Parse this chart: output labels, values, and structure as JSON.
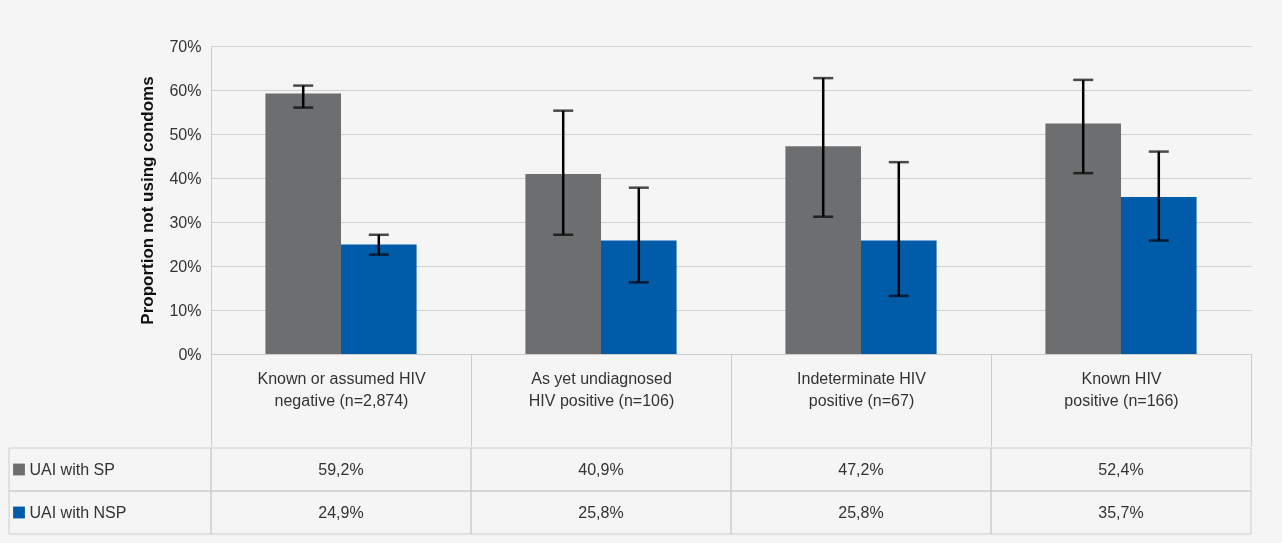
{
  "chart_data": {
    "type": "bar",
    "categories": [
      "Known or assumed HIV negative (n=2,874)",
      "As yet undiagnosed HIV positive (n=106)",
      "Indeterminate HIV positive (n=67)",
      "Known HIV positive (n=166)"
    ],
    "ylabel": "Proportion not using condoms",
    "ylim": [
      0,
      70
    ],
    "yticks": [
      {
        "value": 0,
        "label": "0%"
      },
      {
        "value": 10,
        "label": "10%"
      },
      {
        "value": 20,
        "label": "20%"
      },
      {
        "value": 30,
        "label": "30%"
      },
      {
        "value": 40,
        "label": "40%"
      },
      {
        "value": 50,
        "label": "50%"
      },
      {
        "value": 60,
        "label": "60%"
      },
      {
        "value": 70,
        "label": "70%"
      }
    ],
    "grid": "y",
    "legend": "bottom left",
    "series": [
      {
        "name": "UAI with SP",
        "color": "#6d6e70",
        "values": [
          59.2,
          40.9,
          47.2,
          52.4
        ],
        "value_labels": [
          "59,2%",
          "40,9%",
          "47,2%",
          "52,4%"
        ],
        "errors": [
          [
            56.0,
            61.0
          ],
          [
            27.1,
            55.3
          ],
          [
            31.2,
            62.7
          ],
          [
            41.1,
            62.3
          ]
        ]
      },
      {
        "name": "UAI with NSP",
        "color": "#005ca8",
        "values": [
          24.9,
          25.8,
          25.8,
          35.7
        ],
        "value_labels": [
          "24,9%",
          "25,8%",
          "25,8%",
          "35,7%"
        ],
        "errors": [
          [
            22.6,
            27.1
          ],
          [
            16.3,
            37.8
          ],
          [
            13.2,
            43.6
          ],
          [
            25.8,
            46.0
          ]
        ]
      }
    ]
  }
}
